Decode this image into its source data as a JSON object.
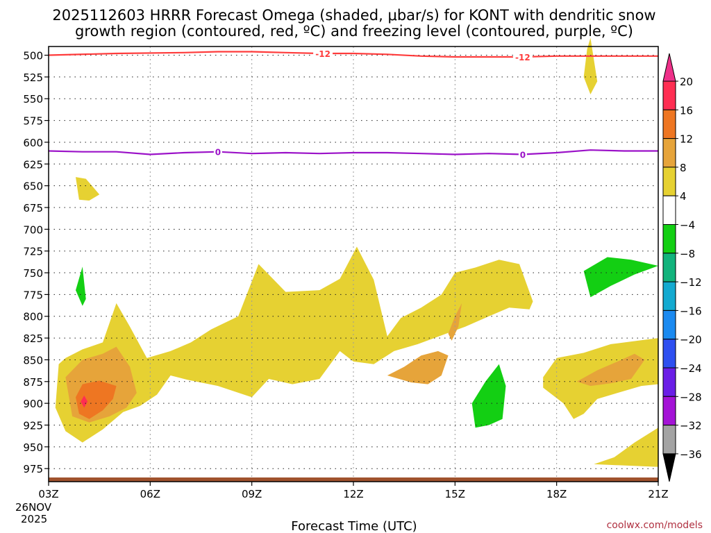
{
  "chart_data": {
    "type": "time-height contour",
    "title_line1": "2025112603 HRRR Forecast Omega (shaded, μbar/s) for KONT with dendritic snow",
    "title_line2": "growth region (contoured, red, ºC) and freezing level (contoured, purple, ºC)",
    "xlabel": "Forecast Time (UTC)",
    "x_ticks": [
      "03Z",
      "06Z",
      "09Z",
      "12Z",
      "15Z",
      "18Z",
      "21Z"
    ],
    "x_hours": [
      3,
      6,
      9,
      12,
      15,
      18,
      21
    ],
    "xlim": [
      3,
      21
    ],
    "date_line1": "26NOV",
    "date_line2": "2025",
    "y_ticks": [
      "500",
      "525",
      "550",
      "575",
      "600",
      "625",
      "650",
      "675",
      "700",
      "725",
      "750",
      "775",
      "800",
      "825",
      "850",
      "875",
      "900",
      "925",
      "950",
      "975"
    ],
    "y_levels": [
      500,
      525,
      550,
      575,
      600,
      625,
      650,
      675,
      700,
      725,
      750,
      775,
      800,
      825,
      850,
      875,
      900,
      925,
      950,
      975
    ],
    "ylim": [
      990,
      490
    ],
    "colorbar_labels": [
      "20",
      "16",
      "12",
      "8",
      "4",
      "-4",
      "-8",
      "-12",
      "-16",
      "-20",
      "-24",
      "-28",
      "-32",
      "-36"
    ],
    "colorbar_colors": [
      "#ff2e52",
      "#ee7622",
      "#e6a43a",
      "#e6d132",
      "#ffffff",
      "#13cf13",
      "#12b37c",
      "#14aad0",
      "#1b8af0",
      "#2e4ff0",
      "#6a1ee6",
      "#a413d6",
      "#a3a3a3"
    ],
    "colorbar_top_color": "#ee3089",
    "colorbar_bottom_color": "#000000",
    "contours": [
      {
        "name": "dendritic-snow-growth -12C",
        "label": "-12",
        "color": "#ff3b3b",
        "x": [
          3,
          5,
          7,
          8,
          9,
          10,
          11,
          12,
          13,
          14,
          15,
          16,
          17,
          18,
          19,
          20,
          21
        ],
        "y": [
          500,
          498,
          497,
          496,
          496,
          497,
          498,
          498,
          499,
          501,
          502,
          502,
          502,
          501,
          501,
          501,
          501
        ]
      },
      {
        "name": "freezing-level 0C",
        "label": "0",
        "color": "#9b12c8",
        "x": [
          3,
          4,
          5,
          6,
          7,
          8,
          9,
          10,
          11,
          12,
          13,
          14,
          15,
          16,
          17,
          18,
          19,
          20,
          21
        ],
        "y": [
          610,
          611,
          611,
          614,
          612,
          611,
          613,
          612,
          613,
          612,
          612,
          613,
          614,
          613,
          614,
          612,
          609,
          610,
          610
        ]
      }
    ],
    "omega_regions": [
      {
        "name": "main-upward-motion-plume",
        "level": "4",
        "color": "#e6d132",
        "x": [
          3.3,
          3.5,
          4.0,
          4.6,
          5.0,
          5.4,
          5.9,
          6.6,
          7.2,
          7.8,
          8.6,
          9.2,
          10.0,
          11.0,
          11.6,
          12.1,
          12.6,
          13.0,
          13.4,
          14.0,
          14.6,
          15.0,
          15.6,
          16.3,
          16.9,
          17.3,
          17.2,
          16.6,
          16.0,
          15.3,
          14.6,
          13.9,
          13.2,
          12.6,
          12.0,
          11.6,
          11.0,
          10.2,
          9.5,
          9.0,
          8.0,
          7.1,
          6.6,
          6.2,
          5.7,
          5.2,
          4.6,
          4.0,
          3.5,
          3.2,
          3.3
        ],
        "y": [
          855,
          848,
          838,
          830,
          785,
          812,
          848,
          840,
          830,
          815,
          800,
          740,
          772,
          770,
          757,
          720,
          758,
          823,
          802,
          790,
          775,
          750,
          744,
          735,
          740,
          783,
          792,
          790,
          800,
          812,
          822,
          832,
          840,
          855,
          852,
          840,
          872,
          878,
          872,
          893,
          880,
          873,
          868,
          890,
          903,
          910,
          930,
          945,
          932,
          905,
          855
        ]
      },
      {
        "name": "main-plume-8",
        "level": "8",
        "color": "#e6a43a",
        "x": [
          3.5,
          4.0,
          4.6,
          5.0,
          5.4,
          5.6,
          5.3,
          4.8,
          4.2,
          3.7,
          3.5
        ],
        "y": [
          870,
          850,
          843,
          835,
          858,
          888,
          905,
          915,
          922,
          915,
          870
        ]
      },
      {
        "name": "main-plume-12",
        "level": "12",
        "color": "#ee7622",
        "x": [
          3.8,
          4.0,
          4.5,
          5.0,
          4.9,
          4.6,
          4.2,
          3.9,
          3.8
        ],
        "y": [
          893,
          878,
          874,
          880,
          895,
          908,
          918,
          912,
          893
        ]
      },
      {
        "name": "main-plume-16",
        "level": "16",
        "color": "#ff2e52",
        "x": [
          3.95,
          4.05,
          4.15,
          4.05,
          3.95
        ],
        "y": [
          898,
          891,
          898,
          905,
          898
        ]
      },
      {
        "name": "cell-13-14Z",
        "level": "8",
        "color": "#e6a43a",
        "x": [
          13.0,
          13.5,
          14.0,
          14.5,
          14.8,
          14.6,
          14.2,
          13.7,
          13.0
        ],
        "y": [
          868,
          858,
          845,
          840,
          845,
          868,
          878,
          876,
          868
        ]
      },
      {
        "name": "cell-15Z",
        "level": "8",
        "color": "#e6a43a",
        "x": [
          14.8,
          15.0,
          15.2,
          15.1,
          14.9,
          14.8
        ],
        "y": [
          820,
          800,
          785,
          812,
          828,
          820
        ]
      },
      {
        "name": "right-plume",
        "level": "4",
        "color": "#e6d132",
        "x": [
          17.6,
          18.0,
          18.8,
          19.6,
          20.4,
          21.0,
          21.0,
          20.5,
          19.8,
          19.2,
          18.8,
          18.5,
          18.2,
          17.6,
          17.6
        ],
        "y": [
          870,
          848,
          842,
          832,
          828,
          825,
          878,
          880,
          888,
          895,
          912,
          918,
          900,
          882,
          870
        ]
      },
      {
        "name": "right-plume-8",
        "level": "8",
        "color": "#e6a43a",
        "x": [
          18.6,
          19.2,
          19.8,
          20.3,
          20.6,
          20.2,
          19.6,
          19.0,
          18.6
        ],
        "y": [
          875,
          862,
          852,
          843,
          850,
          872,
          877,
          880,
          875
        ]
      },
      {
        "name": "bottom-right-wedge",
        "level": "4",
        "color": "#e6d132",
        "x": [
          19.1,
          19.7,
          20.3,
          21.0,
          21.0,
          19.1
        ],
        "y": [
          970,
          962,
          945,
          928,
          973,
          970
        ]
      },
      {
        "name": "upper-cell-650",
        "level": "4",
        "color": "#e6d132",
        "x": [
          3.8,
          4.1,
          4.5,
          4.2,
          3.9,
          3.8
        ],
        "y": [
          640,
          642,
          660,
          667,
          666,
          640
        ]
      },
      {
        "name": "upper-cell-500",
        "level": "4",
        "color": "#e6d132",
        "x": [
          18.9,
          19.0,
          19.2,
          19.0,
          18.8,
          18.9
        ],
        "y": [
          493,
          480,
          530,
          545,
          525,
          493
        ]
      },
      {
        "name": "downward-cell-16Z",
        "level": "-4",
        "color": "#13cf13",
        "x": [
          15.5,
          15.9,
          16.3,
          16.5,
          16.4,
          16.0,
          15.6,
          15.5
        ],
        "y": [
          900,
          875,
          855,
          880,
          918,
          925,
          928,
          900
        ]
      },
      {
        "name": "downward-cell-19Z",
        "level": "-4",
        "color": "#13cf13",
        "x": [
          18.8,
          19.5,
          20.2,
          21.0,
          20.3,
          19.6,
          19.0,
          18.8
        ],
        "y": [
          748,
          732,
          735,
          742,
          752,
          765,
          778,
          748
        ]
      },
      {
        "name": "downward-cell-04Z",
        "level": "-4",
        "color": "#13cf13",
        "x": [
          3.8,
          4.0,
          4.1,
          4.0,
          3.8
        ],
        "y": [
          770,
          743,
          780,
          788,
          770
        ]
      }
    ]
  }
}
